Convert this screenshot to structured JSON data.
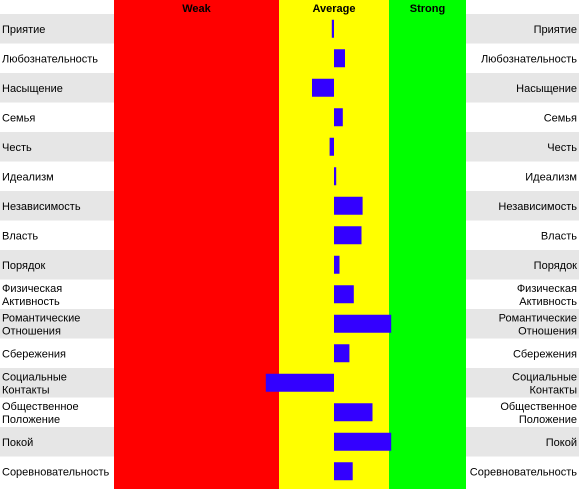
{
  "chart_data": {
    "type": "bar",
    "orientation": "horizontal",
    "zones": [
      {
        "label": "Weak",
        "color": "#ff0000",
        "from": -100,
        "to": -25
      },
      {
        "label": "Average",
        "color": "#ffff00",
        "from": -25,
        "to": 25
      },
      {
        "label": "Strong",
        "color": "#00ff00",
        "from": 25,
        "to": 60
      }
    ],
    "xlim": [
      -100,
      60
    ],
    "baseline": 0,
    "bar_color": "#3300ff",
    "stripe_color": "#e6e6e6",
    "categories": [
      {
        "lines": [
          "Приятие"
        ],
        "value": -1
      },
      {
        "lines": [
          "Любознательность"
        ],
        "value": 5
      },
      {
        "lines": [
          "Насыщение"
        ],
        "value": -10
      },
      {
        "lines": [
          "Семья"
        ],
        "value": 4
      },
      {
        "lines": [
          "Честь"
        ],
        "value": -2
      },
      {
        "lines": [
          "Идеализм"
        ],
        "value": 1
      },
      {
        "lines": [
          "Независимость"
        ],
        "value": 13
      },
      {
        "lines": [
          "Власть"
        ],
        "value": 12.5
      },
      {
        "lines": [
          "Порядок"
        ],
        "value": 2.5
      },
      {
        "lines": [
          "Физическая",
          "Активность"
        ],
        "value": 9
      },
      {
        "lines": [
          "Романтические",
          "Отношения"
        ],
        "value": 26
      },
      {
        "lines": [
          "Сбережения"
        ],
        "value": 7
      },
      {
        "lines": [
          "Социальные",
          "Контакты"
        ],
        "value": -31
      },
      {
        "lines": [
          "Общественное",
          "Положение"
        ],
        "value": 17.5
      },
      {
        "lines": [
          "Покой"
        ],
        "value": 26
      },
      {
        "lines": [
          "Соревновательность"
        ],
        "value": 8.5
      }
    ]
  }
}
